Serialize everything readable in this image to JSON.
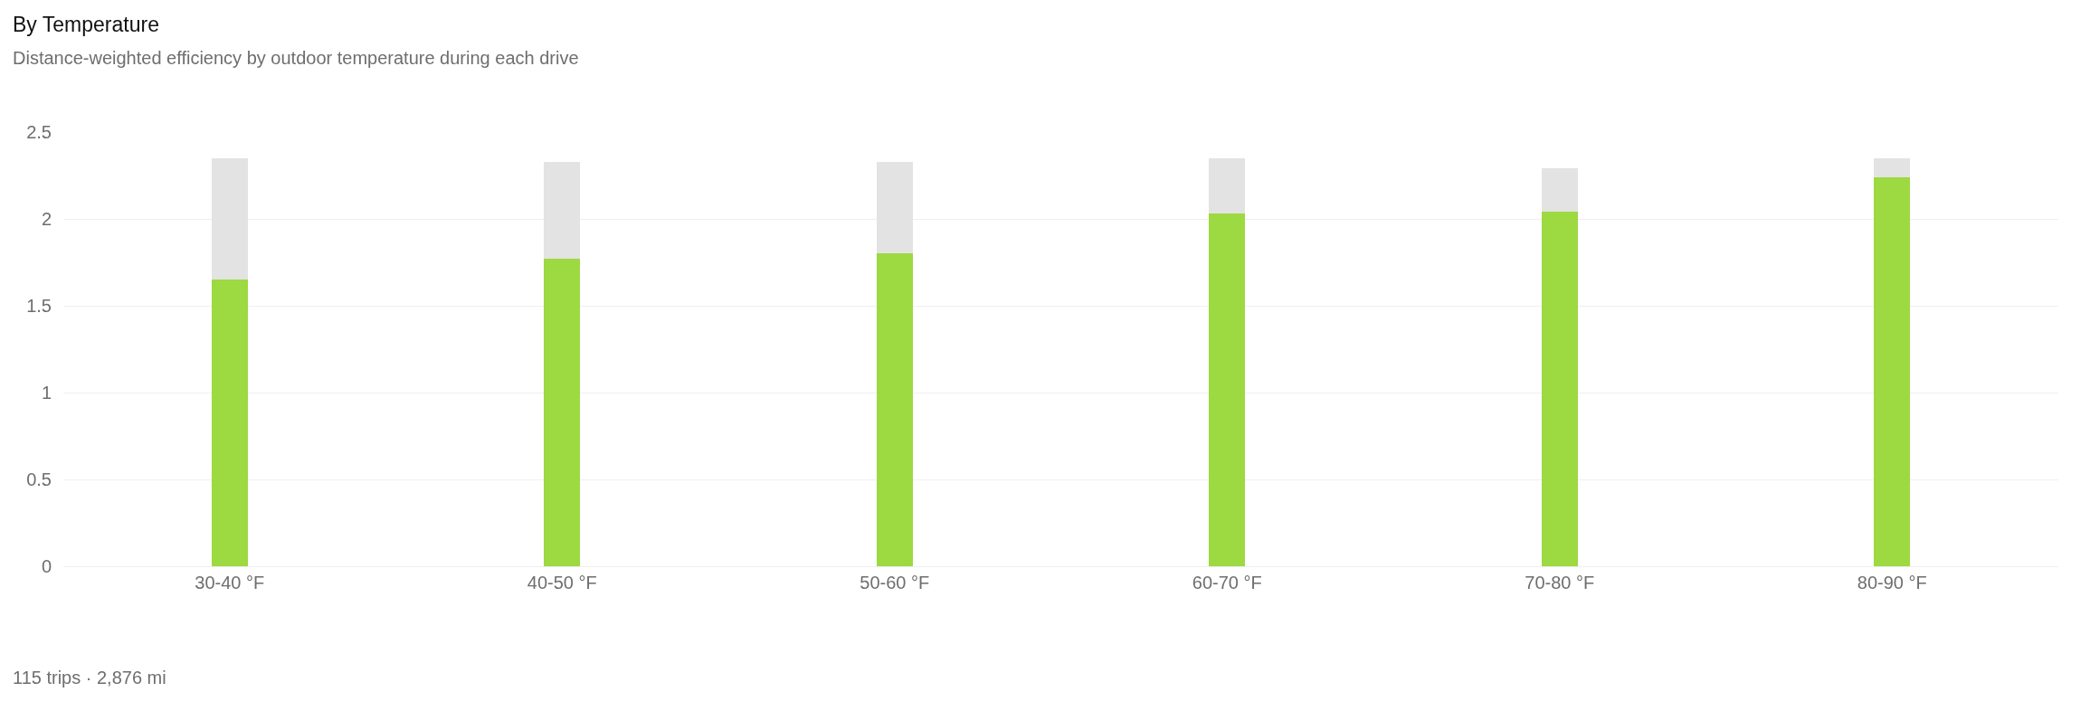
{
  "chart_data": {
    "type": "bar",
    "title": "By Temperature",
    "subtitle": "Distance-weighted efficiency by outdoor temperature during each drive",
    "categories": [
      "30-40 °F",
      "40-50 °F",
      "50-60 °F",
      "60-70 °F",
      "70-80 °F",
      "80-90 °F"
    ],
    "series": [
      {
        "color": "#9dd940",
        "values": [
          1.65,
          1.77,
          1.8,
          2.03,
          2.04,
          2.24
        ]
      },
      {
        "color": "#e3e3e3",
        "values": [
          0.7,
          0.56,
          0.53,
          0.32,
          0.25,
          0.11
        ]
      }
    ],
    "stacked": true,
    "ylim": [
      0,
      2.5
    ],
    "yticks": [
      0,
      0.5,
      1,
      1.5,
      2,
      2.5
    ],
    "grid": "y",
    "annotations": [
      "115 trips · 2,876 mi"
    ]
  }
}
